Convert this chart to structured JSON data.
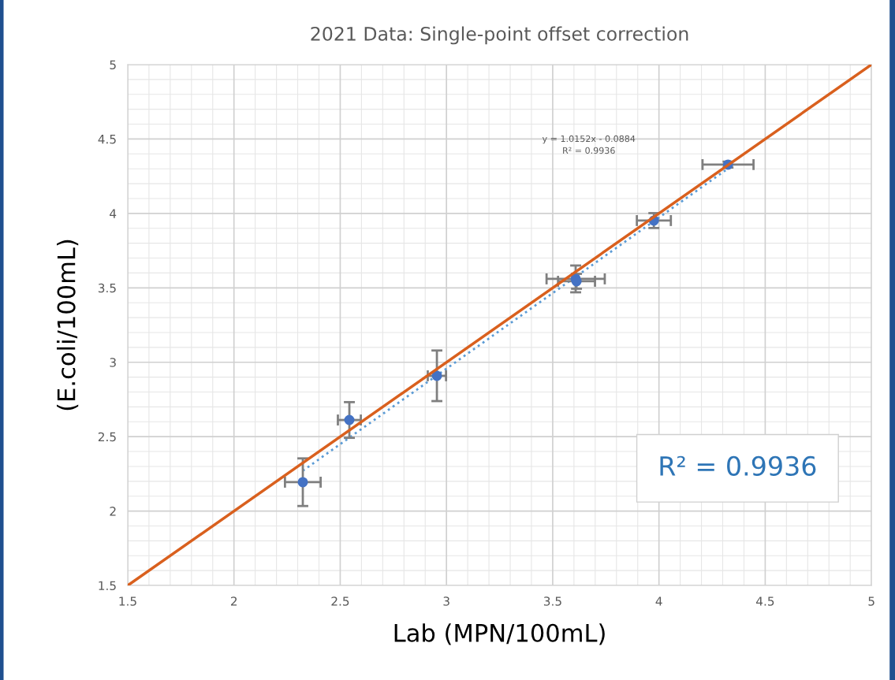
{
  "chart_data": {
    "type": "scatter",
    "title": "2021 Data: Single-point offset correction",
    "xlabel": "Lab (MPN/100mL)",
    "ylabel": "(E.coli/100mL)",
    "series": [
      {
        "color": "#4472c4",
        "marker": "circle",
        "x": [
          2.324,
          2.543,
          2.955,
          3.608,
          3.612,
          3.976,
          4.325
        ],
        "values": [
          2.194,
          2.612,
          2.909,
          3.56,
          3.544,
          3.952,
          4.328
        ],
        "errors": [
          0.16,
          0.12,
          0.17,
          0.09,
          0.05,
          0.05,
          0.02
        ],
        "xerrors": [
          0.084,
          0.054,
          0.043,
          0.137,
          0.087,
          0.08,
          0.12
        ]
      },
      {
        "type": "line",
        "color": "#5b9bd5",
        "line_style": "dotted",
        "x": [
          2.324,
          4.325
        ],
        "values": [
          2.271,
          4.302
        ]
      },
      {
        "type": "line",
        "color": "#d9601e",
        "line_style": "solid",
        "x": [
          1.5,
          5
        ],
        "values": [
          1.5,
          5
        ]
      }
    ],
    "xlim": [
      1.5,
      5
    ],
    "ylim": [
      1.5,
      5
    ],
    "xticks": [
      1.5,
      2,
      2.5,
      3,
      3.5,
      4,
      4.5,
      5
    ],
    "yticks": [
      1.5,
      2,
      2.5,
      3,
      3.5,
      4,
      4.5,
      5
    ],
    "grid": true,
    "annotations": [
      "y = 1.0152x - 0.0884\nR² = 0.9936",
      "R² = 0.9936"
    ]
  }
}
